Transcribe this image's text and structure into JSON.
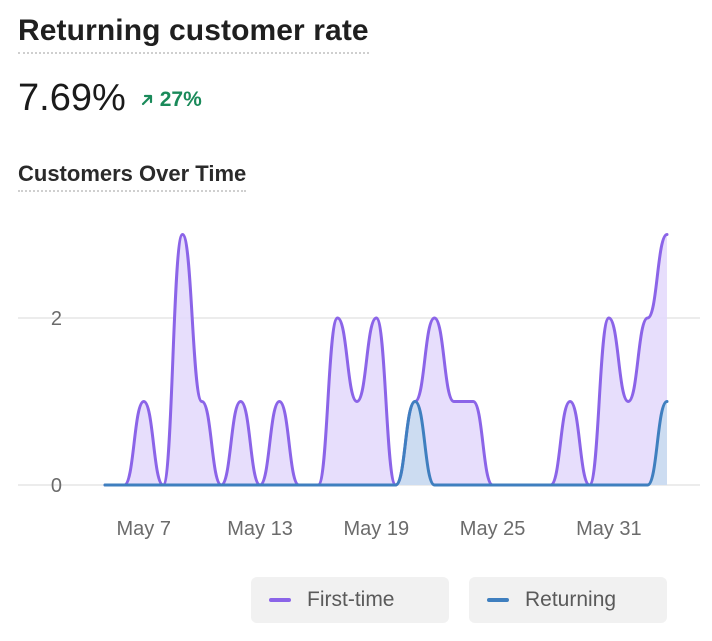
{
  "header": {
    "title": "Returning customer rate",
    "metric_value": "7.69%",
    "delta_value": "27%",
    "delta_direction": "up"
  },
  "chart_section": {
    "title": "Customers Over Time"
  },
  "chart_data": {
    "type": "area",
    "x": [
      "May 5",
      "May 6",
      "May 7",
      "May 8",
      "May 9",
      "May 10",
      "May 11",
      "May 12",
      "May 13",
      "May 14",
      "May 15",
      "May 16",
      "May 17",
      "May 18",
      "May 19",
      "May 20",
      "May 21",
      "May 22",
      "May 23",
      "May 24",
      "May 25",
      "May 26",
      "May 27",
      "May 28",
      "May 29",
      "May 30",
      "May 31",
      "Jun 1",
      "Jun 2",
      "Jun 3"
    ],
    "x_tick_labels": [
      "May 7",
      "May 13",
      "May 19",
      "May 25",
      "May 31"
    ],
    "y_ticks": [
      0,
      2
    ],
    "ylim": [
      0,
      3
    ],
    "grid": true,
    "legend_position": "bottom-right",
    "series": [
      {
        "name": "First-time",
        "color": "#8b64e8",
        "fill": "#e3d8fb",
        "values": [
          0,
          0,
          1,
          0,
          3,
          1,
          0,
          1,
          0,
          1,
          0,
          0,
          2,
          1,
          2,
          0,
          1,
          2,
          1,
          1,
          0,
          0,
          0,
          0,
          1,
          0,
          2,
          1,
          2,
          3
        ]
      },
      {
        "name": "Returning",
        "color": "#3f7fbf",
        "fill": "#c9dcef",
        "values": [
          0,
          0,
          0,
          0,
          0,
          0,
          0,
          0,
          0,
          0,
          0,
          0,
          0,
          0,
          0,
          0,
          1,
          0,
          0,
          0,
          0,
          0,
          0,
          0,
          0,
          0,
          0,
          0,
          0,
          1
        ]
      }
    ]
  }
}
